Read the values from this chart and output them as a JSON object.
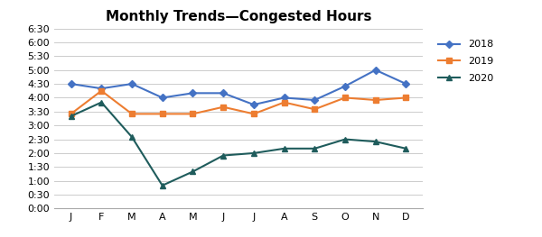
{
  "title": "Monthly Trends—Congested Hours",
  "months": [
    "J",
    "F",
    "M",
    "A",
    "M",
    "J",
    "J",
    "A",
    "S",
    "O",
    "N",
    "D"
  ],
  "series": {
    "2018": [
      4.5,
      4.333,
      4.5,
      4.0,
      4.166,
      4.166,
      3.75,
      4.0,
      3.916,
      4.416,
      5.0,
      4.5
    ],
    "2019": [
      3.416,
      4.25,
      3.416,
      3.416,
      3.416,
      3.666,
      3.416,
      3.833,
      3.583,
      4.0,
      3.916,
      4.0
    ],
    "2020": [
      3.333,
      3.833,
      2.583,
      0.833,
      1.333,
      1.916,
      2.0,
      2.166,
      2.166,
      2.5,
      2.416,
      2.166
    ]
  },
  "colors": {
    "2018": "#4472C4",
    "2019": "#ED7D31",
    "2020": "#1F5C5C"
  },
  "markers": {
    "2018": "D",
    "2019": "s",
    "2020": "^"
  },
  "ylim": [
    0,
    6.5
  ],
  "ytick_interval": 0.5,
  "background_color": "#FFFFFF",
  "grid_color": "#CCCCCC",
  "title_fontsize": 11,
  "legend_fontsize": 8,
  "tick_fontsize": 8
}
